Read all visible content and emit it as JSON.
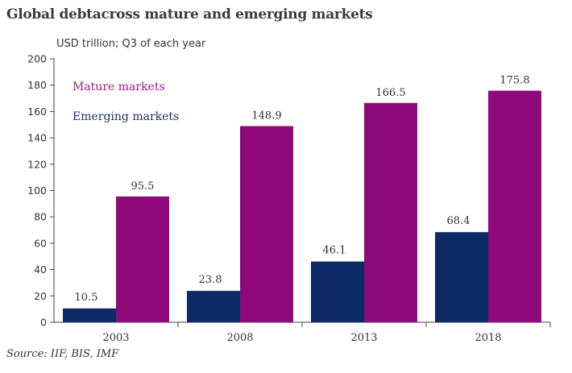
{
  "chart_data": {
    "type": "bar",
    "title": "Global debtacross mature and emerging markets",
    "ylabel": "USD trillion; Q3 of each year",
    "categories": [
      "2003",
      "2008",
      "2013",
      "2018"
    ],
    "series": [
      {
        "name": "Emerging markets",
        "color": "#0d2a66",
        "values": [
          10.5,
          23.8,
          46.1,
          68.4
        ],
        "labels": [
          "10.5",
          "23.8",
          "46.1",
          "68.4"
        ]
      },
      {
        "name": "Mature markets",
        "color": "#8e0a7a",
        "values": [
          95.5,
          148.9,
          166.5,
          175.8
        ],
        "labels": [
          "95.5",
          "148.9",
          "166.5",
          "175.8"
        ]
      }
    ],
    "legend_order": [
      1,
      0
    ],
    "legend_colors": [
      "#9c1a86",
      "#1a2f6b"
    ],
    "ylim": [
      0,
      200
    ],
    "yticks": [
      "0",
      "20",
      "40",
      "60",
      "80",
      "100",
      "120",
      "140",
      "160",
      "180",
      "200"
    ],
    "source": "Source: IIF, BIS, IMF"
  }
}
